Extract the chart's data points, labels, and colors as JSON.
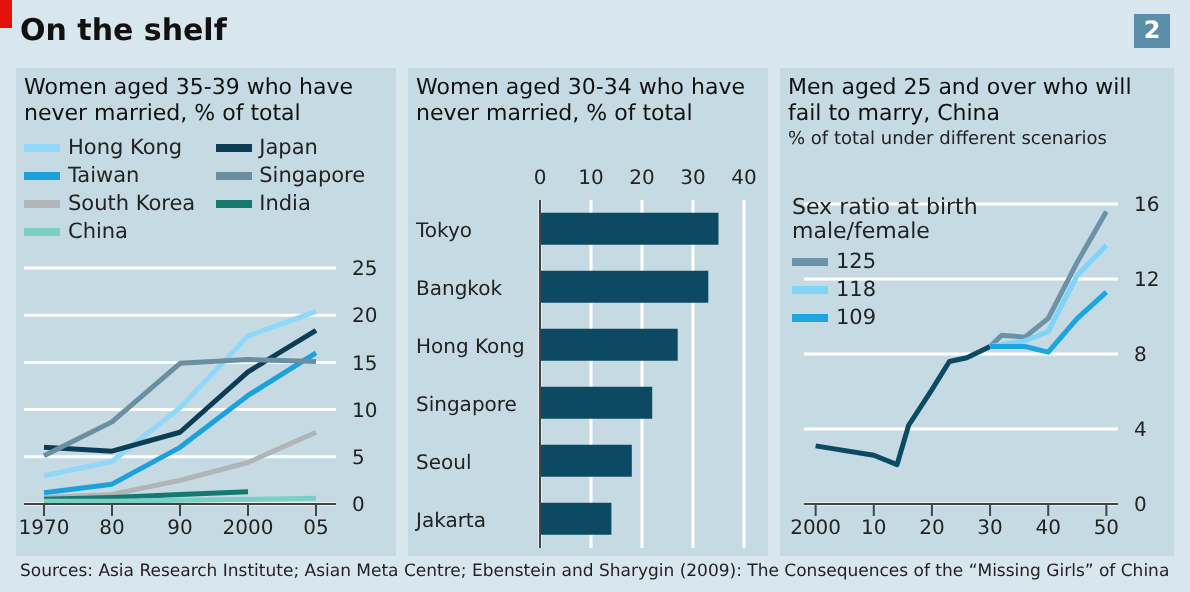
{
  "chart_data": [
    {
      "type": "line",
      "title": "Women aged 35-39 who have never married, % of total",
      "annotations": [
        "On the shelf",
        "2",
        "Sources: Asia Research Institute; Asian Meta Centre; Ebenstein and Sharygin (2009): The Consequences of the “Missing Girls” of China"
      ],
      "categories": [
        "1970",
        "80",
        "90",
        "2000",
        "05"
      ],
      "series": [
        {
          "name": "Hong Kong",
          "color": "#8fd8f8",
          "values": [
            3.0,
            4.5,
            10.2,
            17.8,
            20.4
          ]
        },
        {
          "name": "Japan",
          "color": "#0d3d55",
          "values": [
            6.0,
            5.6,
            7.6,
            14.0,
            18.4
          ]
        },
        {
          "name": "Taiwan",
          "color": "#1ba1de",
          "values": [
            1.2,
            2.1,
            6.0,
            11.5,
            16.0
          ]
        },
        {
          "name": "Singapore",
          "color": "#6a8fa0",
          "values": [
            5.1,
            8.7,
            14.9,
            15.3,
            15.1
          ]
        },
        {
          "name": "South Korea",
          "color": "#b0b5b8",
          "values": [
            0.7,
            1.0,
            2.5,
            4.4,
            7.6
          ]
        },
        {
          "name": "India",
          "color": "#15796e",
          "values": [
            0.5,
            0.7,
            1.0,
            1.3,
            null
          ]
        },
        {
          "name": "China",
          "color": "#7ccfc4",
          "values": [
            0.3,
            0.3,
            0.4,
            0.5,
            0.6
          ]
        }
      ],
      "ylim": [
        0,
        25
      ],
      "yticks": [
        0,
        5,
        10,
        15,
        20,
        25
      ],
      "grid": "y",
      "legend": "top"
    },
    {
      "type": "bar",
      "orientation": "horizontal",
      "title": "Women aged 30-34 who have never married, % of total",
      "categories": [
        "Tokyo",
        "Bangkok",
        "Hong Kong",
        "Singapore",
        "Seoul",
        "Jakarta"
      ],
      "values": [
        35,
        33,
        27,
        22,
        18,
        14
      ],
      "color": "#0c4a63",
      "xlim": [
        0,
        40
      ],
      "xticks": [
        0,
        10,
        20,
        30,
        40
      ],
      "grid": "x"
    },
    {
      "type": "line",
      "title": "Men aged 25 and over who will fail to marry, China",
      "subtitle": "% of total under different scenarios",
      "legend_title": "Sex ratio at birth male/female",
      "series": [
        {
          "color": "#0c4a63",
          "x": [
            2000,
            2010,
            2014,
            2016,
            2020,
            2023,
            2026,
            2030
          ],
          "values": [
            3.1,
            2.6,
            2.1,
            4.2,
            6.1,
            7.6,
            7.8,
            8.4
          ]
        },
        {
          "name": "125",
          "color": "#6a93a8",
          "x": [
            2030,
            2032,
            2036,
            2040,
            2045,
            2050
          ],
          "values": [
            8.4,
            9.0,
            8.9,
            9.9,
            12.9,
            15.6
          ]
        },
        {
          "name": "118",
          "color": "#80d4f7",
          "x": [
            2030,
            2032,
            2036,
            2040,
            2045,
            2050
          ],
          "values": [
            8.4,
            8.5,
            8.7,
            9.2,
            12.2,
            13.8
          ]
        },
        {
          "name": "109",
          "color": "#1ca5e0",
          "x": [
            2030,
            2032,
            2036,
            2040,
            2045,
            2050
          ],
          "values": [
            8.4,
            8.4,
            8.4,
            8.1,
            9.9,
            11.3
          ]
        }
      ],
      "xlim": [
        1998,
        2052
      ],
      "xticks": [
        {
          "value": 2000,
          "label": "2000"
        },
        {
          "value": 2010,
          "label": "10"
        },
        {
          "value": 2020,
          "label": "20"
        },
        {
          "value": 2030,
          "label": "30"
        },
        {
          "value": 2040,
          "label": "40"
        },
        {
          "value": 2050,
          "label": "50"
        }
      ],
      "ylim": [
        0,
        16
      ],
      "yticks": [
        0,
        4,
        8,
        12,
        16
      ],
      "grid": "y",
      "legend": "top left"
    }
  ]
}
